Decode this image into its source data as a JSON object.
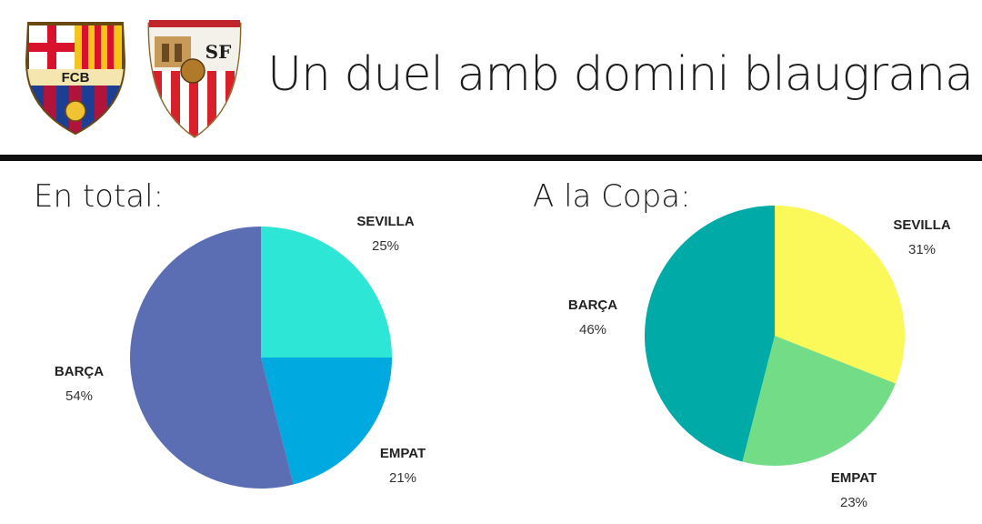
{
  "header": {
    "title": "Un duel amb domini blaugrana",
    "crest_fcb_letters": "FCB",
    "crest_sevilla_letters": "SF"
  },
  "colors": {
    "total": {
      "sevilla": "#2ee6d6",
      "empat": "#00a9e0",
      "barca": "#5b6db3"
    },
    "copa": {
      "sevilla": "#fbf85a",
      "empat": "#72dc87",
      "barca": "#00aaa6"
    }
  },
  "chart_data": [
    {
      "type": "pie",
      "title": "En total:",
      "categories": [
        "SEVILLA",
        "EMPAT",
        "BARÇA"
      ],
      "values": [
        25,
        21,
        54
      ],
      "value_labels": [
        "25%",
        "21%",
        "54%"
      ],
      "start_angle_deg": 0,
      "direction": "clockwise"
    },
    {
      "type": "pie",
      "title": "A la Copa:",
      "categories": [
        "SEVILLA",
        "EMPAT",
        "BARÇA"
      ],
      "values": [
        31,
        23,
        46
      ],
      "value_labels": [
        "31%",
        "23%",
        "46%"
      ],
      "start_angle_deg": 0,
      "direction": "clockwise"
    }
  ]
}
